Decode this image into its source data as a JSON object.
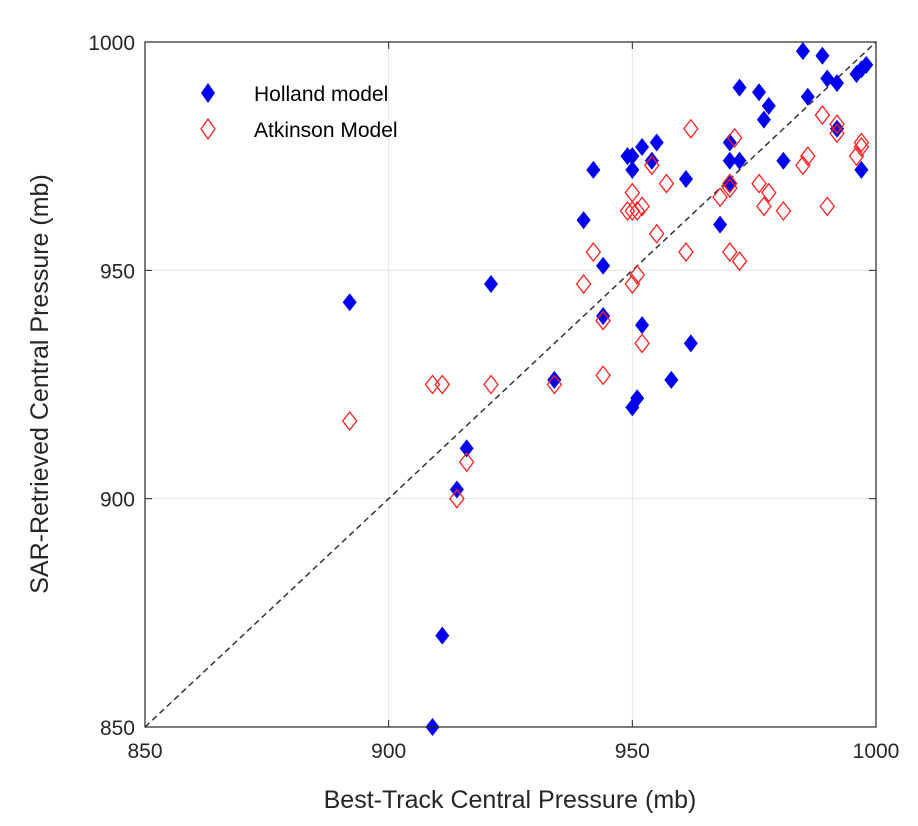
{
  "chart_data": {
    "type": "scatter",
    "title": "",
    "xlabel": "Best-Track Central Pressure (mb)",
    "ylabel": "SAR-Retrieved Central Pressure (mb)",
    "xlim": [
      850,
      1000
    ],
    "ylim": [
      850,
      1000
    ],
    "xticks": [
      "850",
      "900",
      "950",
      "1000"
    ],
    "yticks": [
      "850",
      "900",
      "950",
      "1000"
    ],
    "grid": true,
    "legend_position": "top-left",
    "reference_line": {
      "style": "dashed",
      "color": "#333333",
      "from": [
        850,
        850
      ],
      "to": [
        1000,
        1000
      ]
    },
    "series": [
      {
        "name": "Holland model",
        "marker": "filled-diamond",
        "color": "#0000ee",
        "x": [
          892,
          909,
          911,
          914,
          916,
          921,
          934,
          940,
          942,
          944,
          944,
          949,
          950,
          950,
          950,
          951,
          952,
          952,
          954,
          955,
          958,
          961,
          962,
          968,
          970,
          970,
          970,
          972,
          972,
          976,
          977,
          978,
          981,
          985,
          986,
          989,
          990,
          992,
          992,
          996,
          997,
          997,
          998
        ],
        "y": [
          943,
          850,
          870,
          902,
          911,
          947,
          926,
          961,
          972,
          951,
          940,
          975,
          972,
          920,
          975,
          922,
          977,
          938,
          974,
          978,
          926,
          970,
          934,
          960,
          969,
          974,
          978,
          990,
          974,
          989,
          983,
          986,
          974,
          998,
          988,
          997,
          992,
          991,
          981,
          993,
          994,
          972,
          995
        ]
      },
      {
        "name": "Atkinson Model",
        "marker": "open-diamond",
        "color": "#ff2020",
        "x": [
          892,
          909,
          911,
          914,
          916,
          921,
          934,
          940,
          942,
          944,
          944,
          949,
          950,
          950,
          950,
          951,
          951,
          952,
          952,
          954,
          955,
          957,
          961,
          962,
          968,
          970,
          970,
          970,
          971,
          972,
          976,
          977,
          978,
          981,
          985,
          986,
          989,
          990,
          992,
          992,
          996,
          997,
          997
        ],
        "y": [
          917,
          925,
          925,
          900,
          908,
          925,
          925,
          947,
          954,
          939,
          927,
          963,
          947,
          963,
          967,
          949,
          963,
          964,
          934,
          973,
          958,
          969,
          954,
          981,
          966,
          968,
          969,
          954,
          979,
          952,
          969,
          964,
          967,
          963,
          973,
          975,
          984,
          964,
          980,
          982,
          975,
          977,
          978
        ]
      }
    ]
  }
}
